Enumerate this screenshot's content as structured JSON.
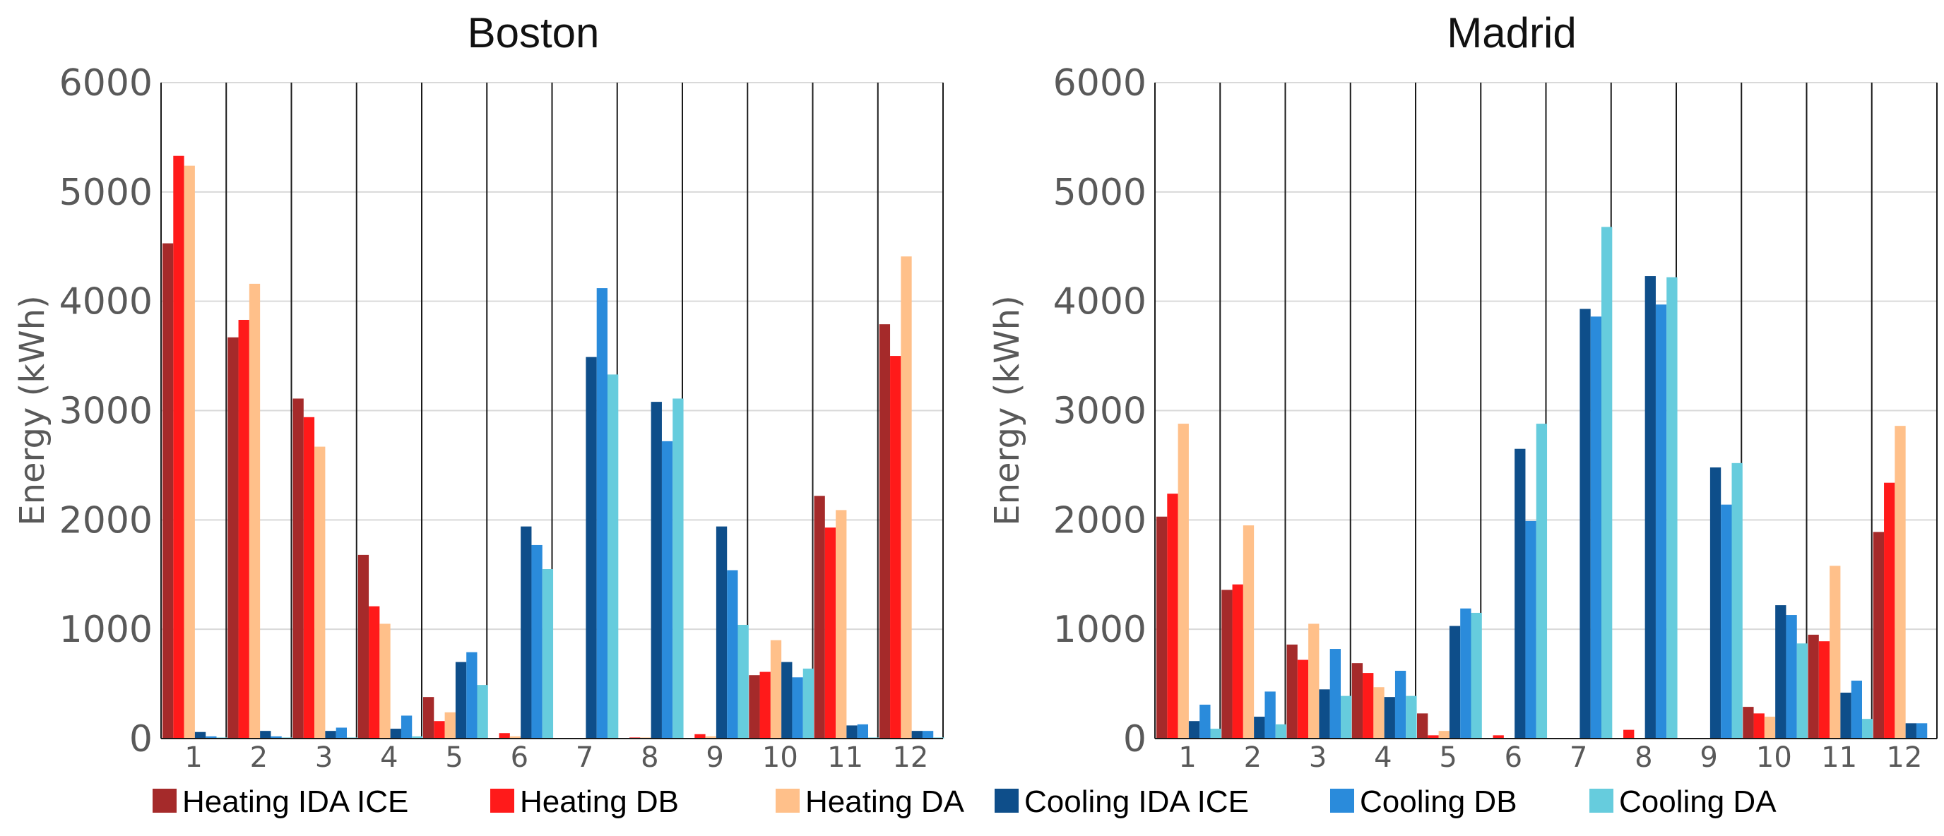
{
  "chart_data": [
    {
      "type": "bar",
      "title": "Boston",
      "xlabel": "",
      "ylabel": "Energy (kWh)",
      "ylim": [
        0,
        6000
      ],
      "yticks": [
        "0",
        "1000",
        "2000",
        "3000",
        "4000",
        "5000",
        "6000"
      ],
      "categories": [
        "1",
        "2",
        "3",
        "4",
        "5",
        "6",
        "7",
        "8",
        "9",
        "10",
        "11",
        "12"
      ],
      "series": [
        {
          "name": "Heating IDA ICE",
          "color": "#A52A2A",
          "values": [
            4530,
            3670,
            3110,
            1680,
            380,
            0,
            0,
            0,
            0,
            580,
            2220,
            3790
          ]
        },
        {
          "name": "Heating DB",
          "color": "#FF1A1A",
          "values": [
            5330,
            3830,
            2940,
            1210,
            160,
            50,
            0,
            10,
            40,
            610,
            1930,
            3500
          ]
        },
        {
          "name": "Heating DA",
          "color": "#FFC08A",
          "values": [
            5240,
            4160,
            2670,
            1050,
            240,
            20,
            0,
            10,
            20,
            900,
            2090,
            4410
          ]
        },
        {
          "name": "Cooling IDA ICE",
          "color": "#0E4E8A",
          "values": [
            60,
            70,
            70,
            90,
            700,
            1940,
            3490,
            3080,
            1940,
            700,
            120,
            70
          ]
        },
        {
          "name": "Cooling DB",
          "color": "#2A8BDB",
          "values": [
            20,
            20,
            100,
            210,
            790,
            1770,
            4120,
            2720,
            1540,
            560,
            130,
            70
          ]
        },
        {
          "name": "Cooling DA",
          "color": "#66CCDD",
          "values": [
            10,
            10,
            10,
            20,
            490,
            1550,
            3330,
            3110,
            1040,
            640,
            10,
            10
          ]
        }
      ]
    },
    {
      "type": "bar",
      "title": "Madrid",
      "xlabel": "",
      "ylabel": "Energy (kWh)",
      "ylim": [
        0,
        6000
      ],
      "yticks": [
        "0",
        "1000",
        "2000",
        "3000",
        "4000",
        "5000",
        "6000"
      ],
      "categories": [
        "1",
        "2",
        "3",
        "4",
        "5",
        "6",
        "7",
        "8",
        "9",
        "10",
        "11",
        "12"
      ],
      "series": [
        {
          "name": "Heating IDA ICE",
          "color": "#A52A2A",
          "values": [
            2030,
            1360,
            860,
            690,
            230,
            0,
            0,
            0,
            0,
            290,
            950,
            1890
          ]
        },
        {
          "name": "Heating DB",
          "color": "#FF1A1A",
          "values": [
            2240,
            1410,
            720,
            600,
            30,
            30,
            0,
            80,
            0,
            230,
            890,
            2340
          ]
        },
        {
          "name": "Heating DA",
          "color": "#FFC08A",
          "values": [
            2880,
            1950,
            1050,
            470,
            70,
            0,
            0,
            0,
            0,
            200,
            1580,
            2860
          ]
        },
        {
          "name": "Cooling IDA ICE",
          "color": "#0E4E8A",
          "values": [
            160,
            200,
            450,
            380,
            1030,
            2650,
            3930,
            4230,
            2480,
            1220,
            420,
            140
          ]
        },
        {
          "name": "Cooling DB",
          "color": "#2A8BDB",
          "values": [
            310,
            430,
            820,
            620,
            1190,
            1990,
            3860,
            3970,
            2140,
            1130,
            530,
            140
          ]
        },
        {
          "name": "Cooling DA",
          "color": "#66CCDD",
          "values": [
            90,
            130,
            390,
            390,
            1150,
            2880,
            4680,
            4220,
            2520,
            870,
            180,
            0
          ]
        }
      ]
    }
  ],
  "legend": {
    "items": [
      {
        "label": "Heating IDA ICE",
        "color": "#A52A2A"
      },
      {
        "label": "Heating DB",
        "color": "#FF1A1A"
      },
      {
        "label": "Heating DA",
        "color": "#FFC08A"
      },
      {
        "label": "Cooling IDA ICE",
        "color": "#0E4E8A"
      },
      {
        "label": "Cooling DB",
        "color": "#2A8BDB"
      },
      {
        "label": "Cooling DA",
        "color": "#66CCDD"
      }
    ]
  }
}
